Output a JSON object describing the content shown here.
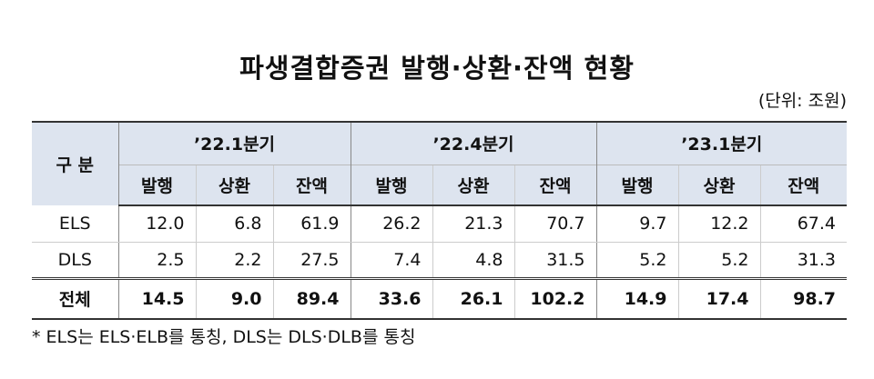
{
  "title": "파생결합증권 발행·상환·잔액 현황",
  "unit": "(단위: 조원)",
  "table": {
    "corner": "구 분",
    "groups": [
      "’22.1분기",
      "’22.4분기",
      "’23.1분기"
    ],
    "subheaders": [
      "발행",
      "상환",
      "잔액",
      "발행",
      "상환",
      "잔액",
      "발행",
      "상환",
      "잔액"
    ],
    "rows": [
      [
        "ELS",
        "12.0",
        "6.8",
        "61.9",
        "26.2",
        "21.3",
        "70.7",
        "9.7",
        "12.2",
        "67.4"
      ],
      [
        "DLS",
        "2.5",
        "2.2",
        "27.5",
        "7.4",
        "4.8",
        "31.5",
        "5.2",
        "5.2",
        "31.3"
      ],
      [
        "전체",
        "14.5",
        "9.0",
        "89.4",
        "33.6",
        "26.1",
        "102.2",
        "14.9",
        "17.4",
        "98.7"
      ]
    ]
  },
  "footnote": "* ELS는 ELS·ELB를 통칭, DLS는 DLS·DLB를 통칭"
}
